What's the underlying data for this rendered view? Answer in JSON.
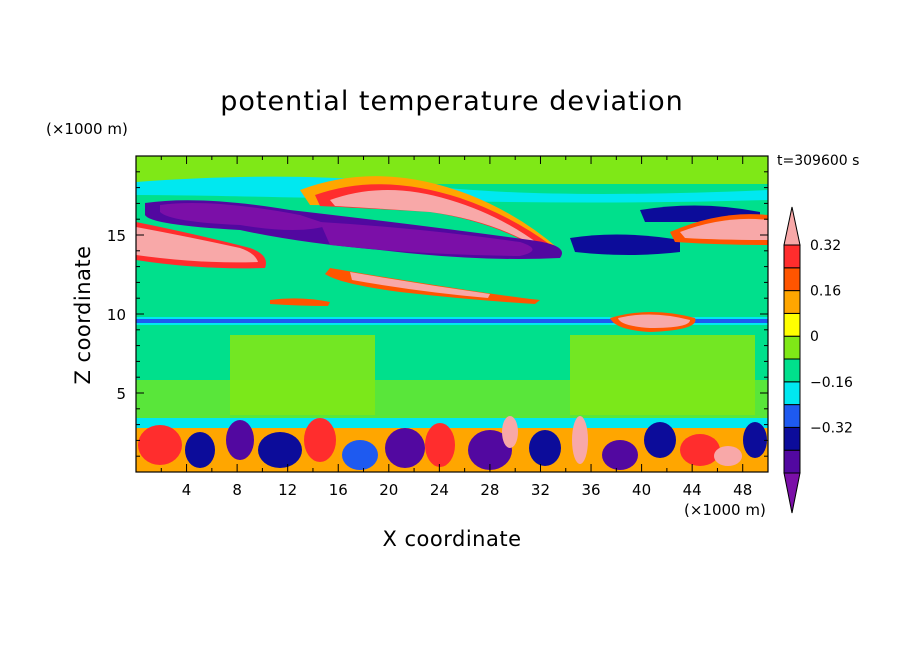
{
  "chart_data": {
    "type": "heatmap",
    "title": "potential temperature deviation",
    "xlabel": "X coordinate",
    "ylabel": "Z coordinate",
    "x_multiplier": "(×1000 m)",
    "y_multiplier": "(×1000 m)",
    "time_label": "t=309600 s",
    "xlim": [
      0,
      50
    ],
    "ylim": [
      0,
      20
    ],
    "x_ticks": [
      4,
      8,
      12,
      16,
      20,
      24,
      28,
      32,
      36,
      40,
      44,
      48
    ],
    "y_ticks": [
      5,
      10,
      15
    ],
    "colorbar": {
      "levels": [
        -0.48,
        -0.4,
        -0.32,
        -0.24,
        -0.16,
        -0.08,
        0,
        0.08,
        0.16,
        0.24,
        0.32,
        0.4
      ],
      "labeled_levels": [
        -0.32,
        -0.16,
        0,
        0.16,
        0.32
      ],
      "labels": [
        "−0.32",
        "−0.16",
        "0",
        "0.16",
        "0.32"
      ],
      "colors": [
        "#7B0FA8",
        "#5208A0",
        "#0C0C9A",
        "#1E5AF0",
        "#00E8F0",
        "#00E08C",
        "#7FE817",
        "#FFFF00",
        "#FFA600",
        "#FF5500",
        "#FF2D2D",
        "#F8A8A8"
      ],
      "extend": "both"
    },
    "features": [
      {
        "desc": "upper warm band",
        "x": [
          2,
          48
        ],
        "z": [
          15,
          18
        ]
      },
      {
        "desc": "upper cold band",
        "x": [
          2,
          46
        ],
        "z": [
          14,
          17
        ]
      },
      {
        "desc": "tropopause line",
        "x": [
          0,
          50
        ],
        "z": [
          9.6,
          9.9
        ]
      },
      {
        "desc": "boundary layer mixed",
        "x": [
          0,
          50
        ],
        "z": [
          0,
          3.5
        ]
      }
    ]
  }
}
